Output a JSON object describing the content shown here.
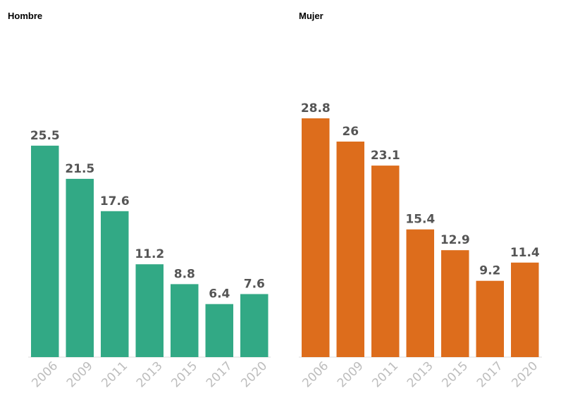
{
  "chart_data": [
    {
      "type": "bar",
      "title": "Hombre",
      "color": "#32a985",
      "categories": [
        "2006",
        "2009",
        "2011",
        "2013",
        "2015",
        "2017",
        "2020"
      ],
      "values": [
        25.5,
        21.5,
        17.6,
        11.2,
        8.8,
        6.4,
        7.6
      ],
      "value_labels": [
        "25.5",
        "21.5",
        "17.6",
        "11.2",
        "8.8",
        "6.4",
        "7.6"
      ],
      "ylim": [
        0,
        28.8
      ],
      "xlabel": "",
      "ylabel": "",
      "grid": false
    },
    {
      "type": "bar",
      "title": "Mujer",
      "color": "#dd6d1c",
      "categories": [
        "2006",
        "2009",
        "2011",
        "2013",
        "2015",
        "2017",
        "2020"
      ],
      "values": [
        28.8,
        26,
        23.1,
        15.4,
        12.9,
        9.2,
        11.4
      ],
      "value_labels": [
        "28.8",
        "26",
        "23.1",
        "15.4",
        "12.9",
        "9.2",
        "11.4"
      ],
      "ylim": [
        0,
        28.8
      ],
      "xlabel": "",
      "ylabel": "",
      "grid": false
    }
  ]
}
